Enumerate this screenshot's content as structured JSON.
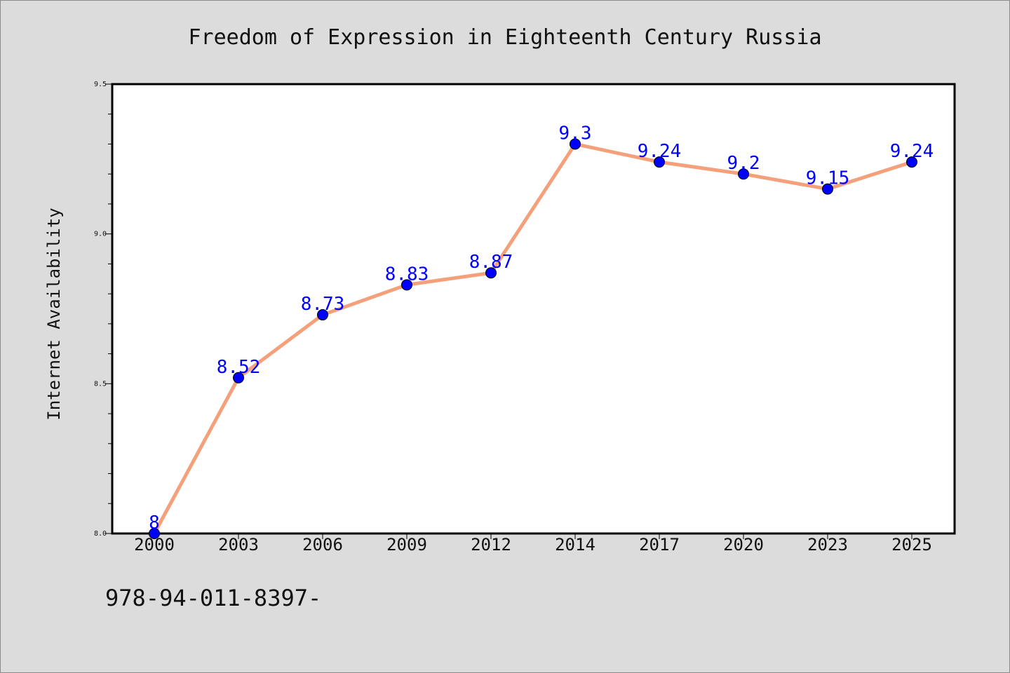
{
  "chart_data": {
    "type": "line",
    "title": "Freedom of Expression in Eighteenth Century Russia",
    "xlabel": "",
    "ylabel": "Internet Availability",
    "categories": [
      "2000",
      "2003",
      "2006",
      "2009",
      "2012",
      "2014",
      "2017",
      "2020",
      "2023",
      "2025"
    ],
    "series": [
      {
        "values": [
          8,
          8.52,
          8.73,
          8.83,
          8.87,
          9.3,
          9.24,
          9.2,
          9.15,
          9.24
        ],
        "data_labels": [
          "8",
          "8.52",
          "8.73",
          "8.83",
          "8.87",
          "9.3",
          "9.24",
          "9.2",
          "9.15",
          "9.24"
        ],
        "line_color": "#f4a07a",
        "marker_color": "#0000ff"
      }
    ],
    "ylim": [
      8.0,
      9.5
    ],
    "yticks": [
      "8.0",
      "8.5",
      "9.0",
      "9.5"
    ],
    "grid": false,
    "legend": "none"
  },
  "annotation": "978-94-011-8397-",
  "colors": {
    "background": "#dcdcdc",
    "plot_background": "#ffffff",
    "axis": "#000000",
    "label_text": "#0000ff"
  }
}
